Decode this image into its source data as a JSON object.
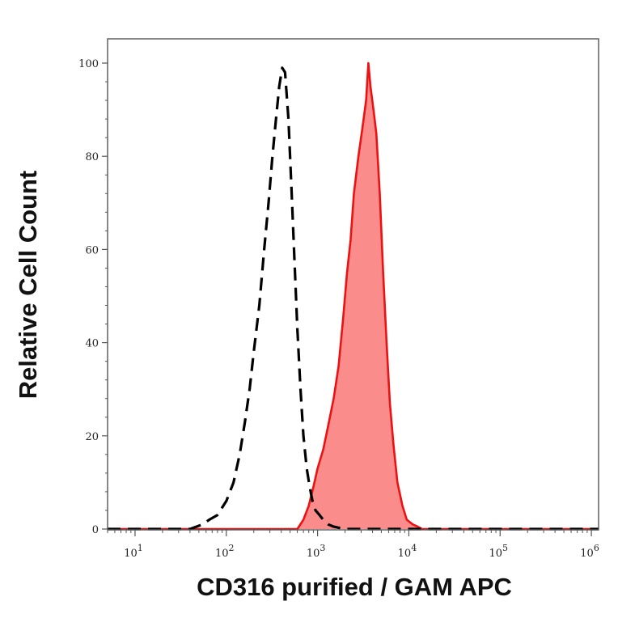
{
  "colors": {
    "control": "#000000",
    "sample_line": "#ee1111",
    "sample_fill": "#fa8c8c",
    "axis": "#555555"
  },
  "chart_data": {
    "type": "area",
    "xlabel": "CD316 purified / GAM APC",
    "ylabel": "Relative Cell Count",
    "xscale": "log",
    "xlim": [
      5,
      1200000
    ],
    "ylim": [
      0,
      100
    ],
    "xticks": [
      {
        "value": 10,
        "base": "10",
        "exp": "1"
      },
      {
        "value": 100,
        "base": "10",
        "exp": "2"
      },
      {
        "value": 1000,
        "base": "10",
        "exp": "3"
      },
      {
        "value": 10000,
        "base": "10",
        "exp": "4"
      },
      {
        "value": 100000,
        "base": "10",
        "exp": "5"
      },
      {
        "value": 1000000,
        "base": "10",
        "exp": "6"
      }
    ],
    "yticks": [
      {
        "value": 0,
        "label": "0"
      },
      {
        "value": 20,
        "label": "20"
      },
      {
        "value": 40,
        "label": "40"
      },
      {
        "value": 60,
        "label": "60"
      },
      {
        "value": 80,
        "label": "80"
      },
      {
        "value": 100,
        "label": "100"
      }
    ],
    "grid": false,
    "series": [
      {
        "style": "dashed line",
        "x": [
          5,
          40,
          55,
          65,
          80,
          100,
          120,
          140,
          160,
          180,
          200,
          230,
          260,
          290,
          320,
          350,
          380,
          410,
          440,
          480,
          520,
          560,
          600,
          650,
          700,
          760,
          820,
          880,
          950,
          1050,
          1150,
          1300,
          1500,
          2000,
          5000,
          1200000
        ],
        "y": [
          0,
          0,
          1,
          2,
          3,
          6,
          10,
          16,
          23,
          30,
          38,
          48,
          60,
          70,
          80,
          88,
          95,
          99,
          98,
          88,
          72,
          57,
          43,
          30,
          20,
          13,
          9,
          6,
          4,
          3,
          2,
          1,
          0.5,
          0,
          0,
          0
        ]
      },
      {
        "style": "filled area",
        "x": [
          5,
          600,
          700,
          800,
          900,
          1000,
          1150,
          1300,
          1500,
          1700,
          1900,
          2100,
          2300,
          2500,
          2800,
          3100,
          3400,
          3600,
          3800,
          4100,
          4400,
          4800,
          5200,
          5700,
          6200,
          6800,
          7500,
          8500,
          9500,
          11000,
          12500,
          14000,
          1200000
        ],
        "y": [
          0,
          0,
          2,
          5,
          9,
          13,
          17,
          22,
          28,
          35,
          45,
          55,
          62,
          72,
          80,
          86,
          92,
          100,
          95,
          90,
          85,
          72,
          56,
          40,
          27,
          18,
          10,
          5,
          2,
          1,
          0.5,
          0,
          0
        ]
      }
    ]
  }
}
